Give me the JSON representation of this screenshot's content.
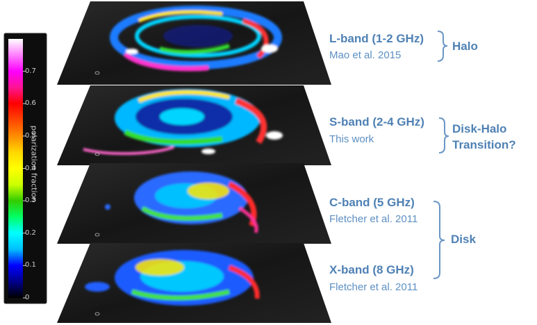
{
  "colorbar": {
    "label": "polarization fraction",
    "ticks": [
      "0",
      "0.1",
      "0.2",
      "0.3",
      "0.4",
      "0.5",
      "0.6",
      "0.7"
    ],
    "range": [
      0,
      0.8
    ],
    "colors": [
      "#000000",
      "#00008b",
      "#0000ff",
      "#00bfff",
      "#00ffff",
      "#00ff66",
      "#33cc00",
      "#ccff00",
      "#ffff00",
      "#ffd700",
      "#ff8c00",
      "#ff4500",
      "#ff0000",
      "#ff1493",
      "#ff00ff",
      "#ff80ff",
      "#ffffff"
    ]
  },
  "bands": [
    {
      "title": "L-band (1-2 GHz)",
      "reference": "Mao et al. 2015",
      "region": "Halo"
    },
    {
      "title": "S-band (2-4 GHz)",
      "reference": "This work",
      "region": "Disk-Halo Transition?"
    },
    {
      "title": "C-band (5 GHz)",
      "reference": "Fletcher et al. 2011",
      "region": "Disk"
    },
    {
      "title": "X-band (8 GHz)",
      "reference": "Fletcher et al. 2011",
      "region": "Disk"
    }
  ],
  "regions": {
    "halo": "Halo",
    "transition_line1": "Disk-Halo",
    "transition_line2": "Transition?",
    "disk": "Disk"
  },
  "style": {
    "accent": "#4f81b4",
    "panel_color": "#1b1b1b",
    "bracket_color": "#6a96c5"
  }
}
